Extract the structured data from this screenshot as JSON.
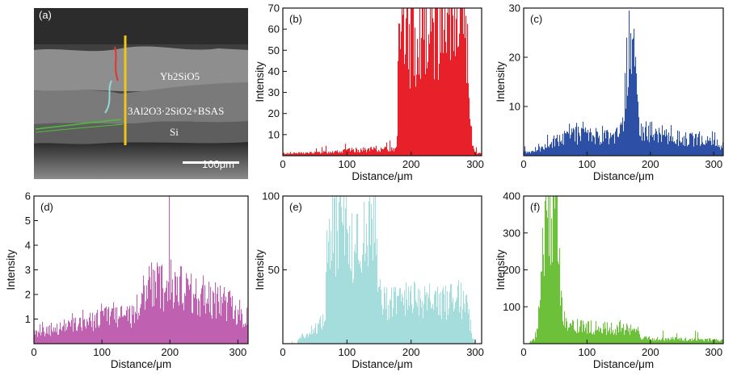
{
  "figure": {
    "micrograph": {
      "label": "(a)",
      "layer_top": "Yb2SiO5",
      "layer_mid": "3Al2O3·2SiO2+BSAS",
      "layer_bottom": "Si",
      "scale_bar": "100μm",
      "colors": {
        "line": "#f0c419",
        "red_trace": "#e53333",
        "cyan_trace": "#8fd9d9",
        "green_trace": "#4fbf3a"
      }
    }
  },
  "chart_data": [
    {
      "panel": "(b)",
      "type": "histogram",
      "color": "#e8202a",
      "xlabel": "Distance/μm",
      "ylabel": "Intensity",
      "xlim": [
        0,
        310
      ],
      "ylim": [
        0,
        70
      ],
      "xticks": [
        "0",
        "100",
        "200",
        "300"
      ],
      "yticks": [
        "10",
        "20",
        "30",
        "40",
        "50",
        "60",
        "70"
      ],
      "profile": [
        [
          0,
          1
        ],
        [
          60,
          1.5
        ],
        [
          100,
          2.5
        ],
        [
          150,
          3
        ],
        [
          178,
          3
        ],
        [
          180,
          55
        ],
        [
          200,
          58
        ],
        [
          220,
          60
        ],
        [
          240,
          63
        ],
        [
          260,
          58
        ],
        [
          280,
          55
        ],
        [
          288,
          45
        ],
        [
          293,
          15
        ],
        [
          297,
          3
        ],
        [
          300,
          1
        ],
        [
          310,
          1
        ]
      ],
      "peak": 70
    },
    {
      "panel": "(c)",
      "type": "histogram",
      "color": "#2e4fa6",
      "xlabel": "Distance/μm",
      "ylabel": "Intensity",
      "xlim": [
        0,
        315
      ],
      "ylim": [
        0,
        30
      ],
      "xticks": [
        "0",
        "100",
        "200",
        "300"
      ],
      "yticks": [
        "10",
        "20",
        "30"
      ],
      "profile": [
        [
          0,
          0.5
        ],
        [
          30,
          1.5
        ],
        [
          50,
          3
        ],
        [
          80,
          4
        ],
        [
          110,
          4
        ],
        [
          140,
          3.5
        ],
        [
          155,
          5
        ],
        [
          160,
          12
        ],
        [
          165,
          22
        ],
        [
          168,
          26
        ],
        [
          172,
          22
        ],
        [
          178,
          12
        ],
        [
          185,
          5
        ],
        [
          210,
          4
        ],
        [
          250,
          3.5
        ],
        [
          280,
          3
        ],
        [
          300,
          2.5
        ],
        [
          315,
          2
        ]
      ],
      "peak": 29.5
    },
    {
      "panel": "(d)",
      "type": "histogram",
      "color": "#c060b0",
      "xlabel": "Distance/μm",
      "ylabel": "Intensity",
      "xlim": [
        0,
        315
      ],
      "ylim": [
        0,
        6
      ],
      "xticks": [
        "0",
        "100",
        "200",
        "300"
      ],
      "yticks": [
        "1",
        "2",
        "3",
        "4",
        "5",
        "6"
      ],
      "profile": [
        [
          0,
          0.4
        ],
        [
          50,
          0.7
        ],
        [
          100,
          1
        ],
        [
          150,
          1.2
        ],
        [
          165,
          2.2
        ],
        [
          200,
          2.4
        ],
        [
          240,
          2
        ],
        [
          280,
          1.6
        ],
        [
          300,
          1.3
        ],
        [
          315,
          1
        ]
      ],
      "peak": 6
    },
    {
      "panel": "(e)",
      "type": "histogram",
      "color": "#a5dcdc",
      "xlabel": "Distance/μm",
      "ylabel": "Intensity",
      "xlim": [
        0,
        310
      ],
      "ylim": [
        0,
        100
      ],
      "xticks": [
        "0",
        "100",
        "200",
        "300"
      ],
      "yticks": [
        "50",
        "100"
      ],
      "profile": [
        [
          0,
          0
        ],
        [
          22,
          0
        ],
        [
          25,
          4
        ],
        [
          50,
          8
        ],
        [
          65,
          15
        ],
        [
          70,
          70
        ],
        [
          90,
          75
        ],
        [
          110,
          70
        ],
        [
          130,
          80
        ],
        [
          145,
          82
        ],
        [
          150,
          30
        ],
        [
          160,
          25
        ],
        [
          200,
          30
        ],
        [
          240,
          28
        ],
        [
          280,
          30
        ],
        [
          290,
          20
        ],
        [
          295,
          5
        ],
        [
          300,
          0
        ],
        [
          310,
          0
        ]
      ],
      "peak": 100
    },
    {
      "panel": "(f)",
      "type": "histogram",
      "color": "#6cc03a",
      "xlabel": "Distance/μm",
      "ylabel": "Intensity",
      "xlim": [
        0,
        315
      ],
      "ylim": [
        0,
        400
      ],
      "xticks": [
        "0",
        "100",
        "200",
        "300"
      ],
      "yticks": [
        "100",
        "200",
        "300",
        "400"
      ],
      "profile": [
        [
          0,
          0
        ],
        [
          8,
          0
        ],
        [
          10,
          5
        ],
        [
          20,
          15
        ],
        [
          25,
          80
        ],
        [
          30,
          300
        ],
        [
          40,
          370
        ],
        [
          50,
          360
        ],
        [
          55,
          250
        ],
        [
          62,
          80
        ],
        [
          70,
          50
        ],
        [
          100,
          45
        ],
        [
          150,
          40
        ],
        [
          180,
          35
        ],
        [
          185,
          15
        ],
        [
          250,
          12
        ],
        [
          300,
          10
        ],
        [
          315,
          8
        ]
      ],
      "peak": 400
    }
  ]
}
